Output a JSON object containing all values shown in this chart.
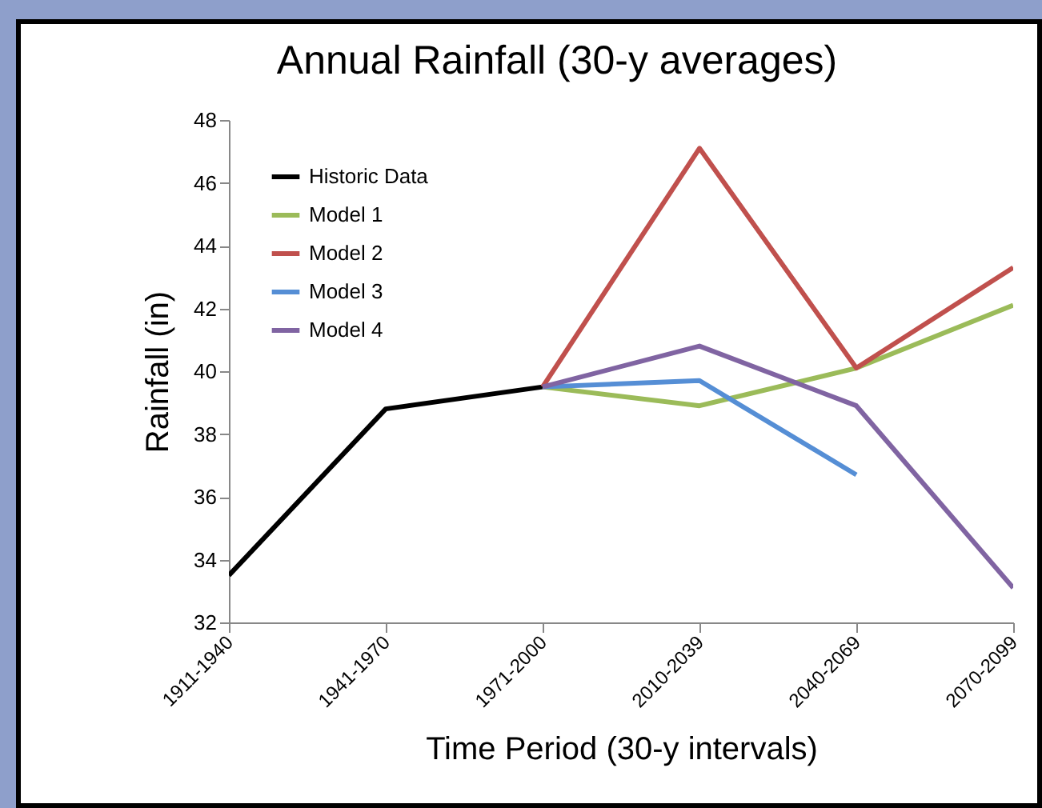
{
  "chart_data": {
    "type": "line",
    "title": "Annual Rainfall (30-y averages)",
    "xlabel": "Time Period (30-y intervals)",
    "ylabel": "Rainfall (in)",
    "categories": [
      "1911-1940",
      "1941-1970",
      "1971-2000",
      "2010-2039",
      "2040-2069",
      "2070-2099"
    ],
    "series": [
      {
        "name": "Historic Data",
        "color": "#000000",
        "values": [
          33.5,
          38.8,
          39.5,
          null,
          null,
          null
        ]
      },
      {
        "name": "Model 1",
        "color": "#9bbb59",
        "values": [
          null,
          null,
          39.5,
          38.9,
          40.1,
          42.1
        ]
      },
      {
        "name": "Model 2",
        "color": "#c0504d",
        "values": [
          null,
          null,
          39.5,
          47.1,
          40.1,
          43.3
        ]
      },
      {
        "name": "Model 3",
        "color": "#558ed5",
        "values": [
          null,
          null,
          39.5,
          39.7,
          36.7,
          null
        ]
      },
      {
        "name": "Model 4",
        "color": "#8064a2",
        "values": [
          null,
          null,
          39.5,
          40.8,
          38.9,
          33.1
        ]
      }
    ],
    "ylim": [
      32,
      48
    ],
    "yticks": [
      32,
      34,
      36,
      38,
      40,
      42,
      44,
      46,
      48
    ],
    "grid": false,
    "legend": "top left"
  }
}
